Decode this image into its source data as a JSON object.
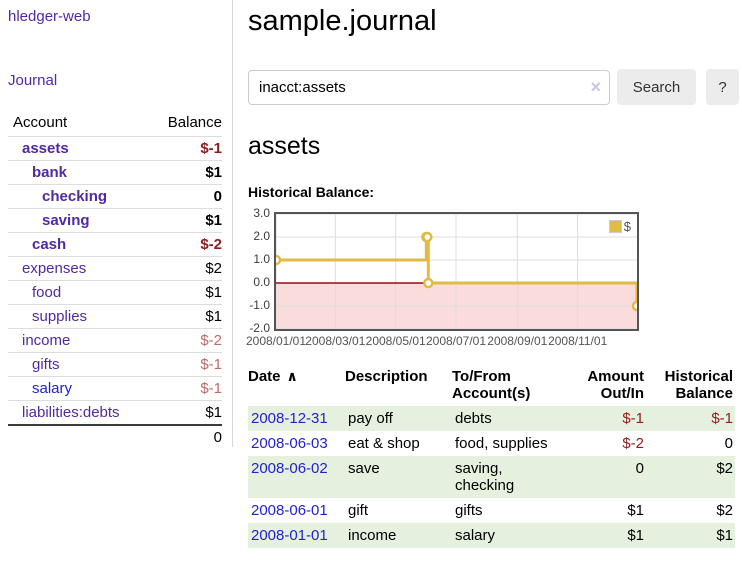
{
  "app": {
    "brand": "hledger-web",
    "nav_journal": "Journal"
  },
  "sidebar": {
    "header": {
      "account": "Account",
      "balance": "Balance"
    },
    "accounts": [
      {
        "name": "assets",
        "balance": "$-1",
        "level": 1,
        "bold": true,
        "neg": "bold"
      },
      {
        "name": "bank",
        "balance": "$1",
        "level": 2,
        "bold": true,
        "neg": "no"
      },
      {
        "name": "checking",
        "balance": "0",
        "level": 3,
        "bold": true,
        "neg": "no"
      },
      {
        "name": "saving",
        "balance": "$1",
        "level": 3,
        "bold": true,
        "neg": "no"
      },
      {
        "name": "cash",
        "balance": "$-2",
        "level": 2,
        "bold": true,
        "neg": "bold"
      },
      {
        "name": "expenses",
        "balance": "$2",
        "level": 1,
        "bold": false,
        "neg": "no"
      },
      {
        "name": "food",
        "balance": "$1",
        "level": 2,
        "bold": false,
        "neg": "no"
      },
      {
        "name": "supplies",
        "balance": "$1",
        "level": 2,
        "bold": false,
        "neg": "no"
      },
      {
        "name": "income",
        "balance": "$-2",
        "level": 1,
        "bold": false,
        "neg": "light"
      },
      {
        "name": "gifts",
        "balance": "$-1",
        "level": 2,
        "bold": false,
        "neg": "light"
      },
      {
        "name": "salary",
        "balance": "$-1",
        "level": 2,
        "bold": false,
        "neg": "light",
        "blue": true
      },
      {
        "name": "liabilities:debts",
        "balance": "$1",
        "level": 1,
        "bold": false,
        "neg": "no"
      }
    ],
    "total": "0"
  },
  "main": {
    "title": "sample.journal",
    "search": {
      "value": "inacct:assets",
      "clear_icon": "×",
      "button": "Search",
      "help_button": "?"
    },
    "account_heading": "assets",
    "chart_label": "Historical Balance:"
  },
  "chart_data": {
    "type": "line",
    "title": "Historical Balance",
    "step": true,
    "series": [
      {
        "name": "$",
        "color": "#e2bb45",
        "points": [
          [
            "2008-01-01",
            1
          ],
          [
            "2008-06-01",
            2
          ],
          [
            "2008-06-02",
            2
          ],
          [
            "2008-06-03",
            0
          ],
          [
            "2008-12-31",
            -1
          ]
        ]
      }
    ],
    "x_start": "2008-01-01",
    "x_end": "2008-12-31",
    "x_ticks": [
      "2008/01/01",
      "2008/03/01",
      "2008/05/01",
      "2008/07/01",
      "2008/09/01",
      "2008/11/01"
    ],
    "y_ticks": [
      3.0,
      2.0,
      1.0,
      0.0,
      -1.0,
      -2.0
    ],
    "ylim": [
      -2,
      3
    ],
    "grid": true,
    "gridline_color": "#dddddd",
    "border_color": "#545454",
    "zero_line_color": "#9c0a0a",
    "negative_region_color": "#fbdcdc",
    "legend": {
      "label": "$",
      "position": "top-right"
    }
  },
  "register": {
    "sort_icon": "∧",
    "headers": [
      {
        "label": "Date",
        "align": "left",
        "sortable": true
      },
      {
        "label": "Description",
        "align": "left"
      },
      {
        "label": "To/From Account(s)",
        "align": "left"
      },
      {
        "label": "Amount Out/In",
        "align": "right"
      },
      {
        "label": "Historical Balance",
        "align": "right"
      }
    ],
    "rows": [
      {
        "date": "2008-12-31",
        "description": "pay off",
        "tofrom": "debts",
        "amount": "$-1",
        "amount_neg": true,
        "balance": "$-1",
        "balance_neg": true
      },
      {
        "date": "2008-06-03",
        "description": "eat & shop",
        "tofrom": "food, supplies",
        "amount": "$-2",
        "amount_neg": true,
        "balance": "0",
        "balance_neg": false
      },
      {
        "date": "2008-06-02",
        "description": "save",
        "tofrom": "saving, checking",
        "amount": "0",
        "amount_neg": false,
        "balance": "$2",
        "balance_neg": false
      },
      {
        "date": "2008-06-01",
        "description": "gift",
        "tofrom": "gifts",
        "amount": "$1",
        "amount_neg": false,
        "balance": "$2",
        "balance_neg": false
      },
      {
        "date": "2008-01-01",
        "description": "income",
        "tofrom": "salary",
        "amount": "$1",
        "amount_neg": false,
        "balance": "$1",
        "balance_neg": false
      }
    ]
  }
}
